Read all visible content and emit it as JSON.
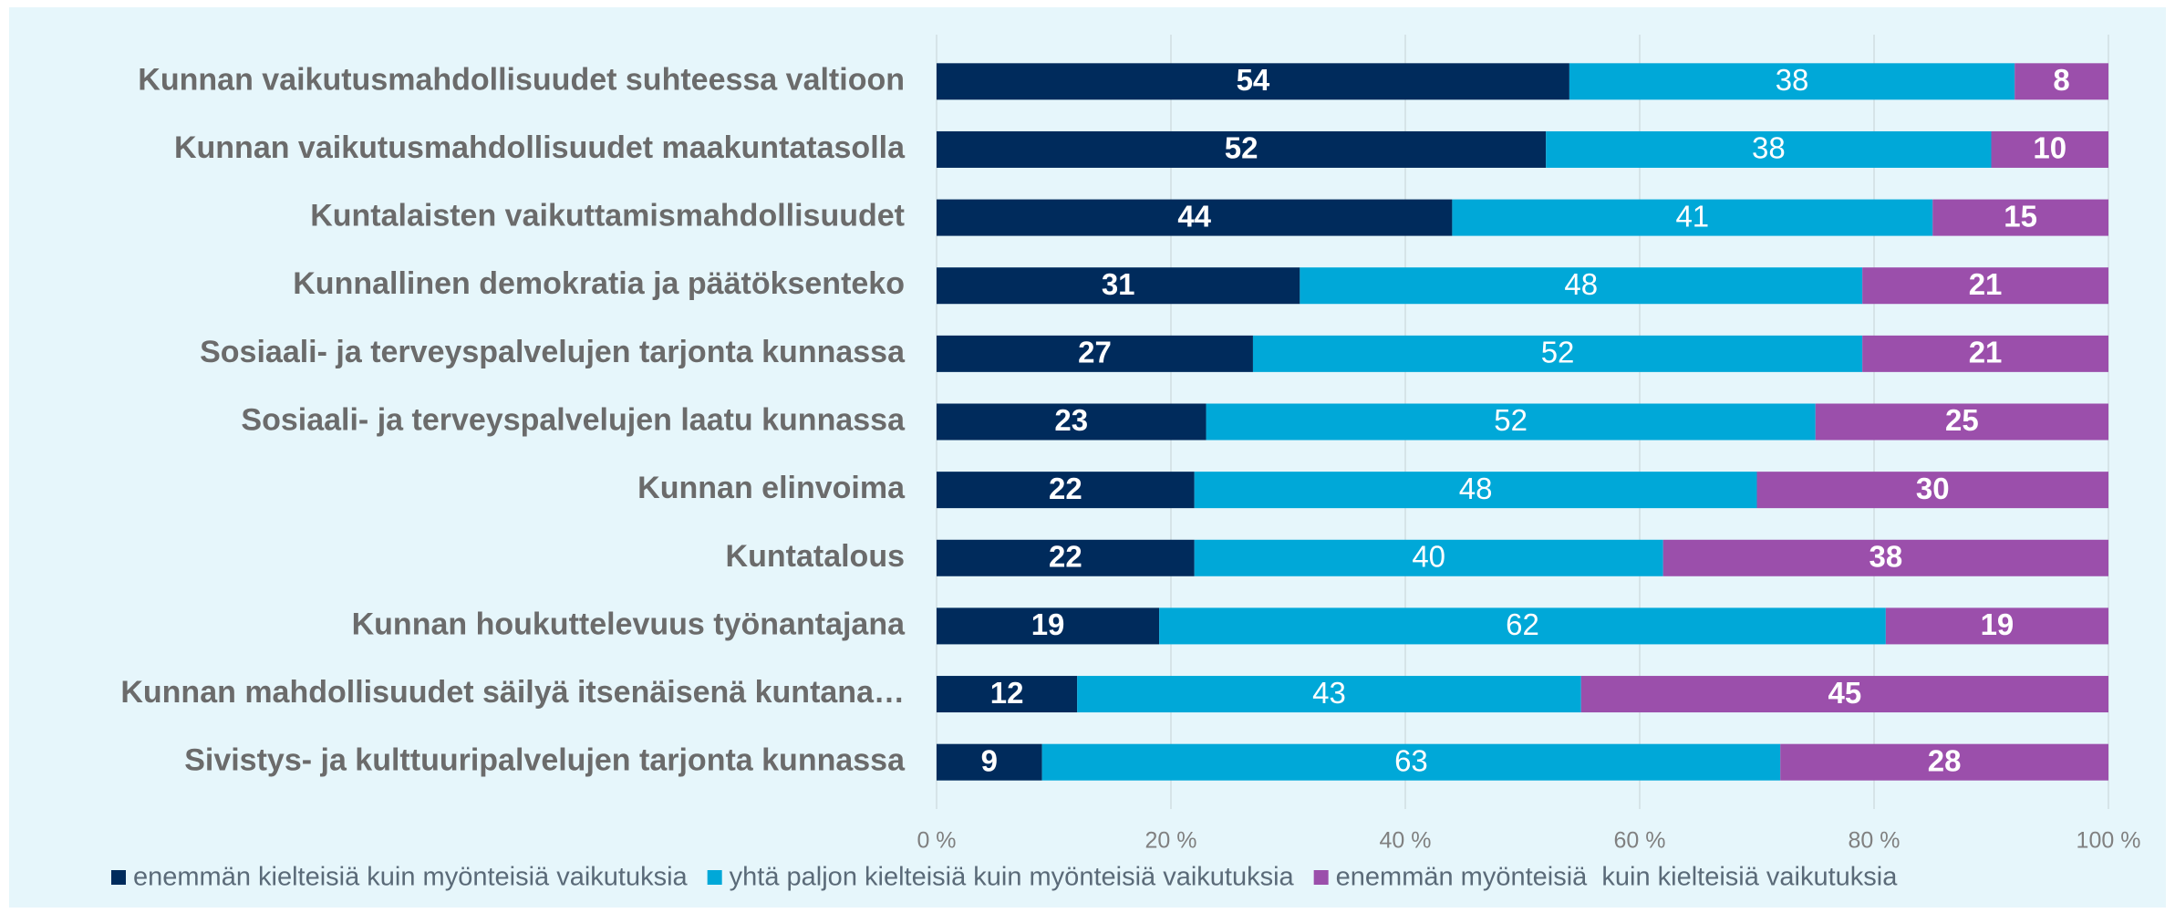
{
  "chart_data": {
    "type": "stacked_bar_horizontal",
    "categories": [
      "Kunnan vaikutusmahdollisuudet suhteessa valtioon",
      "Kunnan vaikutusmahdollisuudet maakuntatasolla",
      "Kuntalaisten vaikuttamismahdollisuudet",
      "Kunnallinen demokratia ja päätöksenteko",
      "Sosiaali- ja terveyspalvelujen tarjonta kunnassa",
      "Sosiaali- ja terveyspalvelujen laatu kunnassa",
      "Kunnan elinvoima",
      "Kuntatalous",
      "Kunnan houkuttelevuus työnantajana",
      "Kunnan mahdollisuudet säilyä itsenäisenä kuntana…",
      "Sivistys- ja kulttuuripalvelujen tarjonta kunnassa"
    ],
    "series": [
      {
        "name": "enemmän kielteisiä kuin myönteisiä vaikutuksia",
        "color": "#002b5c",
        "values": [
          54,
          52,
          44,
          31,
          27,
          23,
          22,
          22,
          19,
          12,
          9
        ]
      },
      {
        "name": "yhtä paljon kielteisiä kuin myönteisiä vaikutuksia",
        "color": "#00a8d8",
        "values": [
          38,
          38,
          41,
          48,
          52,
          52,
          48,
          40,
          62,
          43,
          63
        ]
      },
      {
        "name": "enemmän myönteisiä  kuin kielteisiä vaikutuksia",
        "color": "#9b4fab",
        "values": [
          8,
          10,
          15,
          21,
          21,
          25,
          30,
          38,
          19,
          45,
          28
        ]
      }
    ],
    "xlim": [
      0,
      100
    ],
    "xticks": [
      {
        "value": 0,
        "label": "0 %"
      },
      {
        "value": 20,
        "label": "20 %"
      },
      {
        "value": 40,
        "label": "40 %"
      },
      {
        "value": 60,
        "label": "60 %"
      },
      {
        "value": 80,
        "label": "80 %"
      },
      {
        "value": 100,
        "label": "100 %"
      }
    ],
    "grid": true,
    "legend": "bottom"
  }
}
